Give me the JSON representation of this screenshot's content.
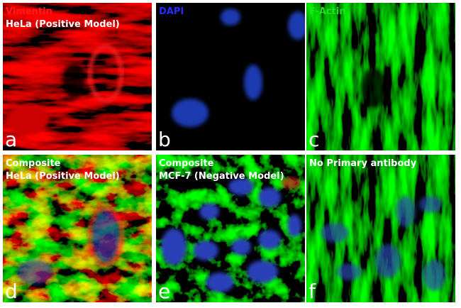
{
  "panels": [
    {
      "lines": [
        "Vimentin",
        "HeLa (Positive Model)"
      ],
      "letter": "a"
    },
    {
      "lines": [
        "DAPI"
      ],
      "letter": "b"
    },
    {
      "lines": [
        "F-Actin"
      ],
      "letter": "c"
    },
    {
      "lines": [
        "Composite",
        "HeLa (Positive Model)"
      ],
      "letter": "d"
    },
    {
      "lines": [
        "Composite",
        "MCF-7 (Negative Model)"
      ],
      "letter": "e"
    },
    {
      "lines": [
        "No Primary antibody"
      ],
      "letter": "f"
    }
  ]
}
